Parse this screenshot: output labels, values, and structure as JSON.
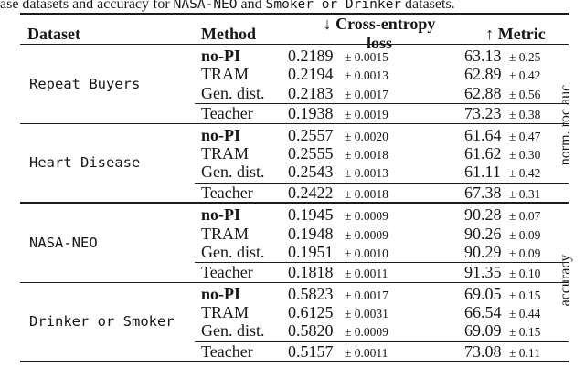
{
  "caption": {
    "segments": [
      {
        "text": "ase datasets and accuracy for ",
        "style": "serif"
      },
      {
        "text": "NASA-NEO",
        "style": "mono"
      },
      {
        "text": " and ",
        "style": "serif"
      },
      {
        "text": "Smoker or Drinker",
        "style": "mono"
      },
      {
        "text": " datasets.",
        "style": "serif"
      }
    ]
  },
  "plus_minus": "±",
  "table": {
    "headers": {
      "dataset": "Dataset",
      "method": "Method",
      "loss": "↓ Cross-entropy loss",
      "metric": "↑ Metric"
    },
    "groups": [
      {
        "label": "norm. roc auc",
        "blocks": [
          {
            "dataset": "Repeat Buyers",
            "rows": [
              {
                "method": "no-PI",
                "bold": true,
                "loss": "0.2189",
                "loss_err": "0.0015",
                "metric": "63.13",
                "metric_err": "0.25"
              },
              {
                "method": "TRAM",
                "bold": false,
                "loss": "0.2194",
                "loss_err": "0.0013",
                "metric": "62.89",
                "metric_err": "0.42"
              },
              {
                "method": "Gen. dist.",
                "bold": false,
                "loss": "0.2183",
                "loss_err": "0.0017",
                "metric": "62.88",
                "metric_err": "0.56"
              },
              {
                "method": "Teacher",
                "bold": false,
                "loss": "0.1938",
                "loss_err": "0.0019",
                "metric": "73.23",
                "metric_err": "0.38"
              }
            ]
          },
          {
            "dataset": "Heart Disease",
            "rows": [
              {
                "method": "no-PI",
                "bold": true,
                "loss": "0.2557",
                "loss_err": "0.0020",
                "metric": "61.64",
                "metric_err": "0.47"
              },
              {
                "method": "TRAM",
                "bold": false,
                "loss": "0.2555",
                "loss_err": "0.0018",
                "metric": "61.62",
                "metric_err": "0.30"
              },
              {
                "method": "Gen. dist.",
                "bold": false,
                "loss": "0.2543",
                "loss_err": "0.0013",
                "metric": "61.11",
                "metric_err": "0.42"
              },
              {
                "method": "Teacher",
                "bold": false,
                "loss": "0.2422",
                "loss_err": "0.0018",
                "metric": "67.38",
                "metric_err": "0.31"
              }
            ]
          }
        ]
      },
      {
        "label": "accuracy",
        "blocks": [
          {
            "dataset": "NASA-NEO",
            "rows": [
              {
                "method": "no-PI",
                "bold": true,
                "loss": "0.1945",
                "loss_err": "0.0009",
                "metric": "90.28",
                "metric_err": "0.07"
              },
              {
                "method": "TRAM",
                "bold": false,
                "loss": "0.1948",
                "loss_err": "0.0009",
                "metric": "90.26",
                "metric_err": "0.09"
              },
              {
                "method": "Gen. dist.",
                "bold": false,
                "loss": "0.1951",
                "loss_err": "0.0010",
                "metric": "90.29",
                "metric_err": "0.09"
              },
              {
                "method": "Teacher",
                "bold": false,
                "loss": "0.1818",
                "loss_err": "0.0011",
                "metric": "91.35",
                "metric_err": "0.10"
              }
            ]
          },
          {
            "dataset": "Drinker or Smoker",
            "rows": [
              {
                "method": "no-PI",
                "bold": true,
                "loss": "0.5823",
                "loss_err": "0.0017",
                "metric": "69.05",
                "metric_err": "0.15"
              },
              {
                "method": "TRAM",
                "bold": false,
                "loss": "0.6125",
                "loss_err": "0.0031",
                "metric": "66.54",
                "metric_err": "0.44"
              },
              {
                "method": "Gen. dist.",
                "bold": false,
                "loss": "0.5820",
                "loss_err": "0.0009",
                "metric": "69.09",
                "metric_err": "0.15"
              },
              {
                "method": "Teacher",
                "bold": false,
                "loss": "0.5157",
                "loss_err": "0.0011",
                "metric": "73.08",
                "metric_err": "0.11"
              }
            ]
          }
        ]
      }
    ]
  }
}
